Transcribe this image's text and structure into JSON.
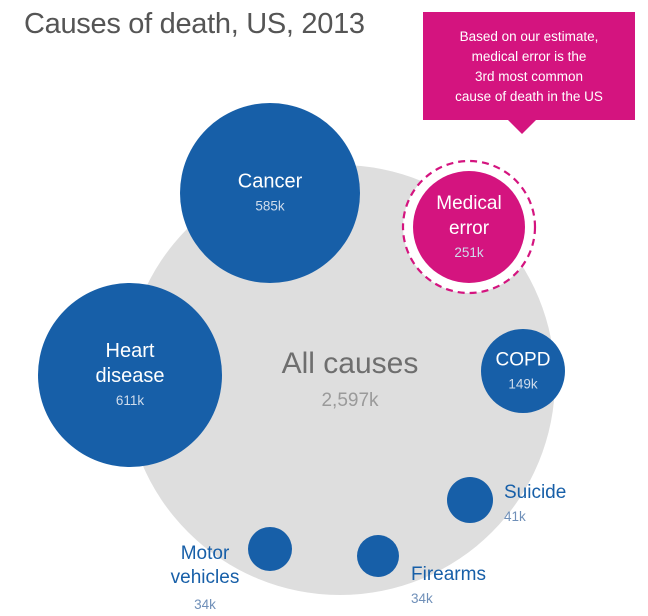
{
  "chart_data": {
    "type": "bubble",
    "title": "Causes of death, US, 2013",
    "unit": "k",
    "total": {
      "name": "All causes",
      "value": 2597,
      "value_label": "2,597k"
    },
    "categories": [
      {
        "id": "heart-disease",
        "name_lines": [
          "Heart",
          "disease"
        ],
        "value": 611,
        "value_label": "611k",
        "highlight": false
      },
      {
        "id": "cancer",
        "name_lines": [
          "Cancer"
        ],
        "value": 585,
        "value_label": "585k",
        "highlight": false
      },
      {
        "id": "medical-error",
        "name_lines": [
          "Medical",
          "error"
        ],
        "value": 251,
        "value_label": "251k",
        "highlight": true
      },
      {
        "id": "copd",
        "name_lines": [
          "COPD"
        ],
        "value": 149,
        "value_label": "149k",
        "highlight": false
      },
      {
        "id": "suicide",
        "name_lines": [
          "Suicide"
        ],
        "value": 41,
        "value_label": "41k",
        "highlight": false
      },
      {
        "id": "firearms",
        "name_lines": [
          "Firearms"
        ],
        "value": 34,
        "value_label": "34k",
        "highlight": false
      },
      {
        "id": "motor-vehicles",
        "name_lines": [
          "Motor",
          "vehicles"
        ],
        "value": 34,
        "value_label": "34k",
        "highlight": false
      }
    ],
    "colors": {
      "bubble": "#175fa8",
      "highlight": "#d4147f",
      "total": "#dedede",
      "total_text": "#6e6e6e"
    }
  },
  "callout": {
    "lines": [
      "Based on our estimate,",
      "medical error is the",
      "3rd most common",
      "cause of death in the US"
    ]
  }
}
